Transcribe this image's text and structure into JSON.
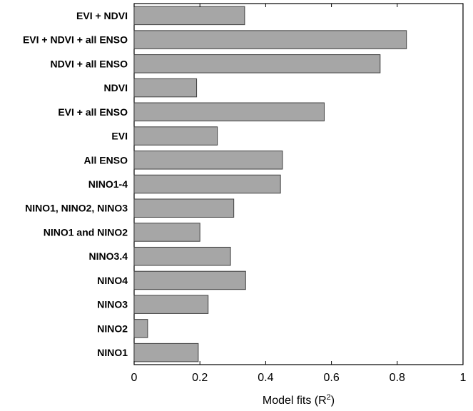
{
  "chart_data": {
    "type": "bar",
    "orientation": "horizontal",
    "categories": [
      "EVI + NDVI",
      "EVI + NDVI + all ENSO",
      "NDVI + all ENSO",
      "NDVI",
      "EVI + all ENSO",
      "EVI",
      "All ENSO",
      "NINO1-4",
      "NINO1, NINO2, NINO3",
      "NINO1 and NINO2",
      "NINO3.4",
      "NINO4",
      "NINO3",
      "NINO2",
      "NINO1"
    ],
    "values": [
      0.336,
      0.828,
      0.748,
      0.19,
      0.578,
      0.253,
      0.451,
      0.445,
      0.303,
      0.2,
      0.293,
      0.339,
      0.225,
      0.041,
      0.195
    ],
    "xlim": [
      0,
      1
    ],
    "xticks": [
      "0",
      "0.2",
      "0.4",
      "0.6",
      "0.8",
      "1"
    ],
    "xlabel": {
      "prefix": "Model fits (R",
      "superscript": "2",
      "suffix": ")"
    },
    "bar_color": "#a6a6a6",
    "bar_edge_color": "#404040",
    "grid": false
  }
}
